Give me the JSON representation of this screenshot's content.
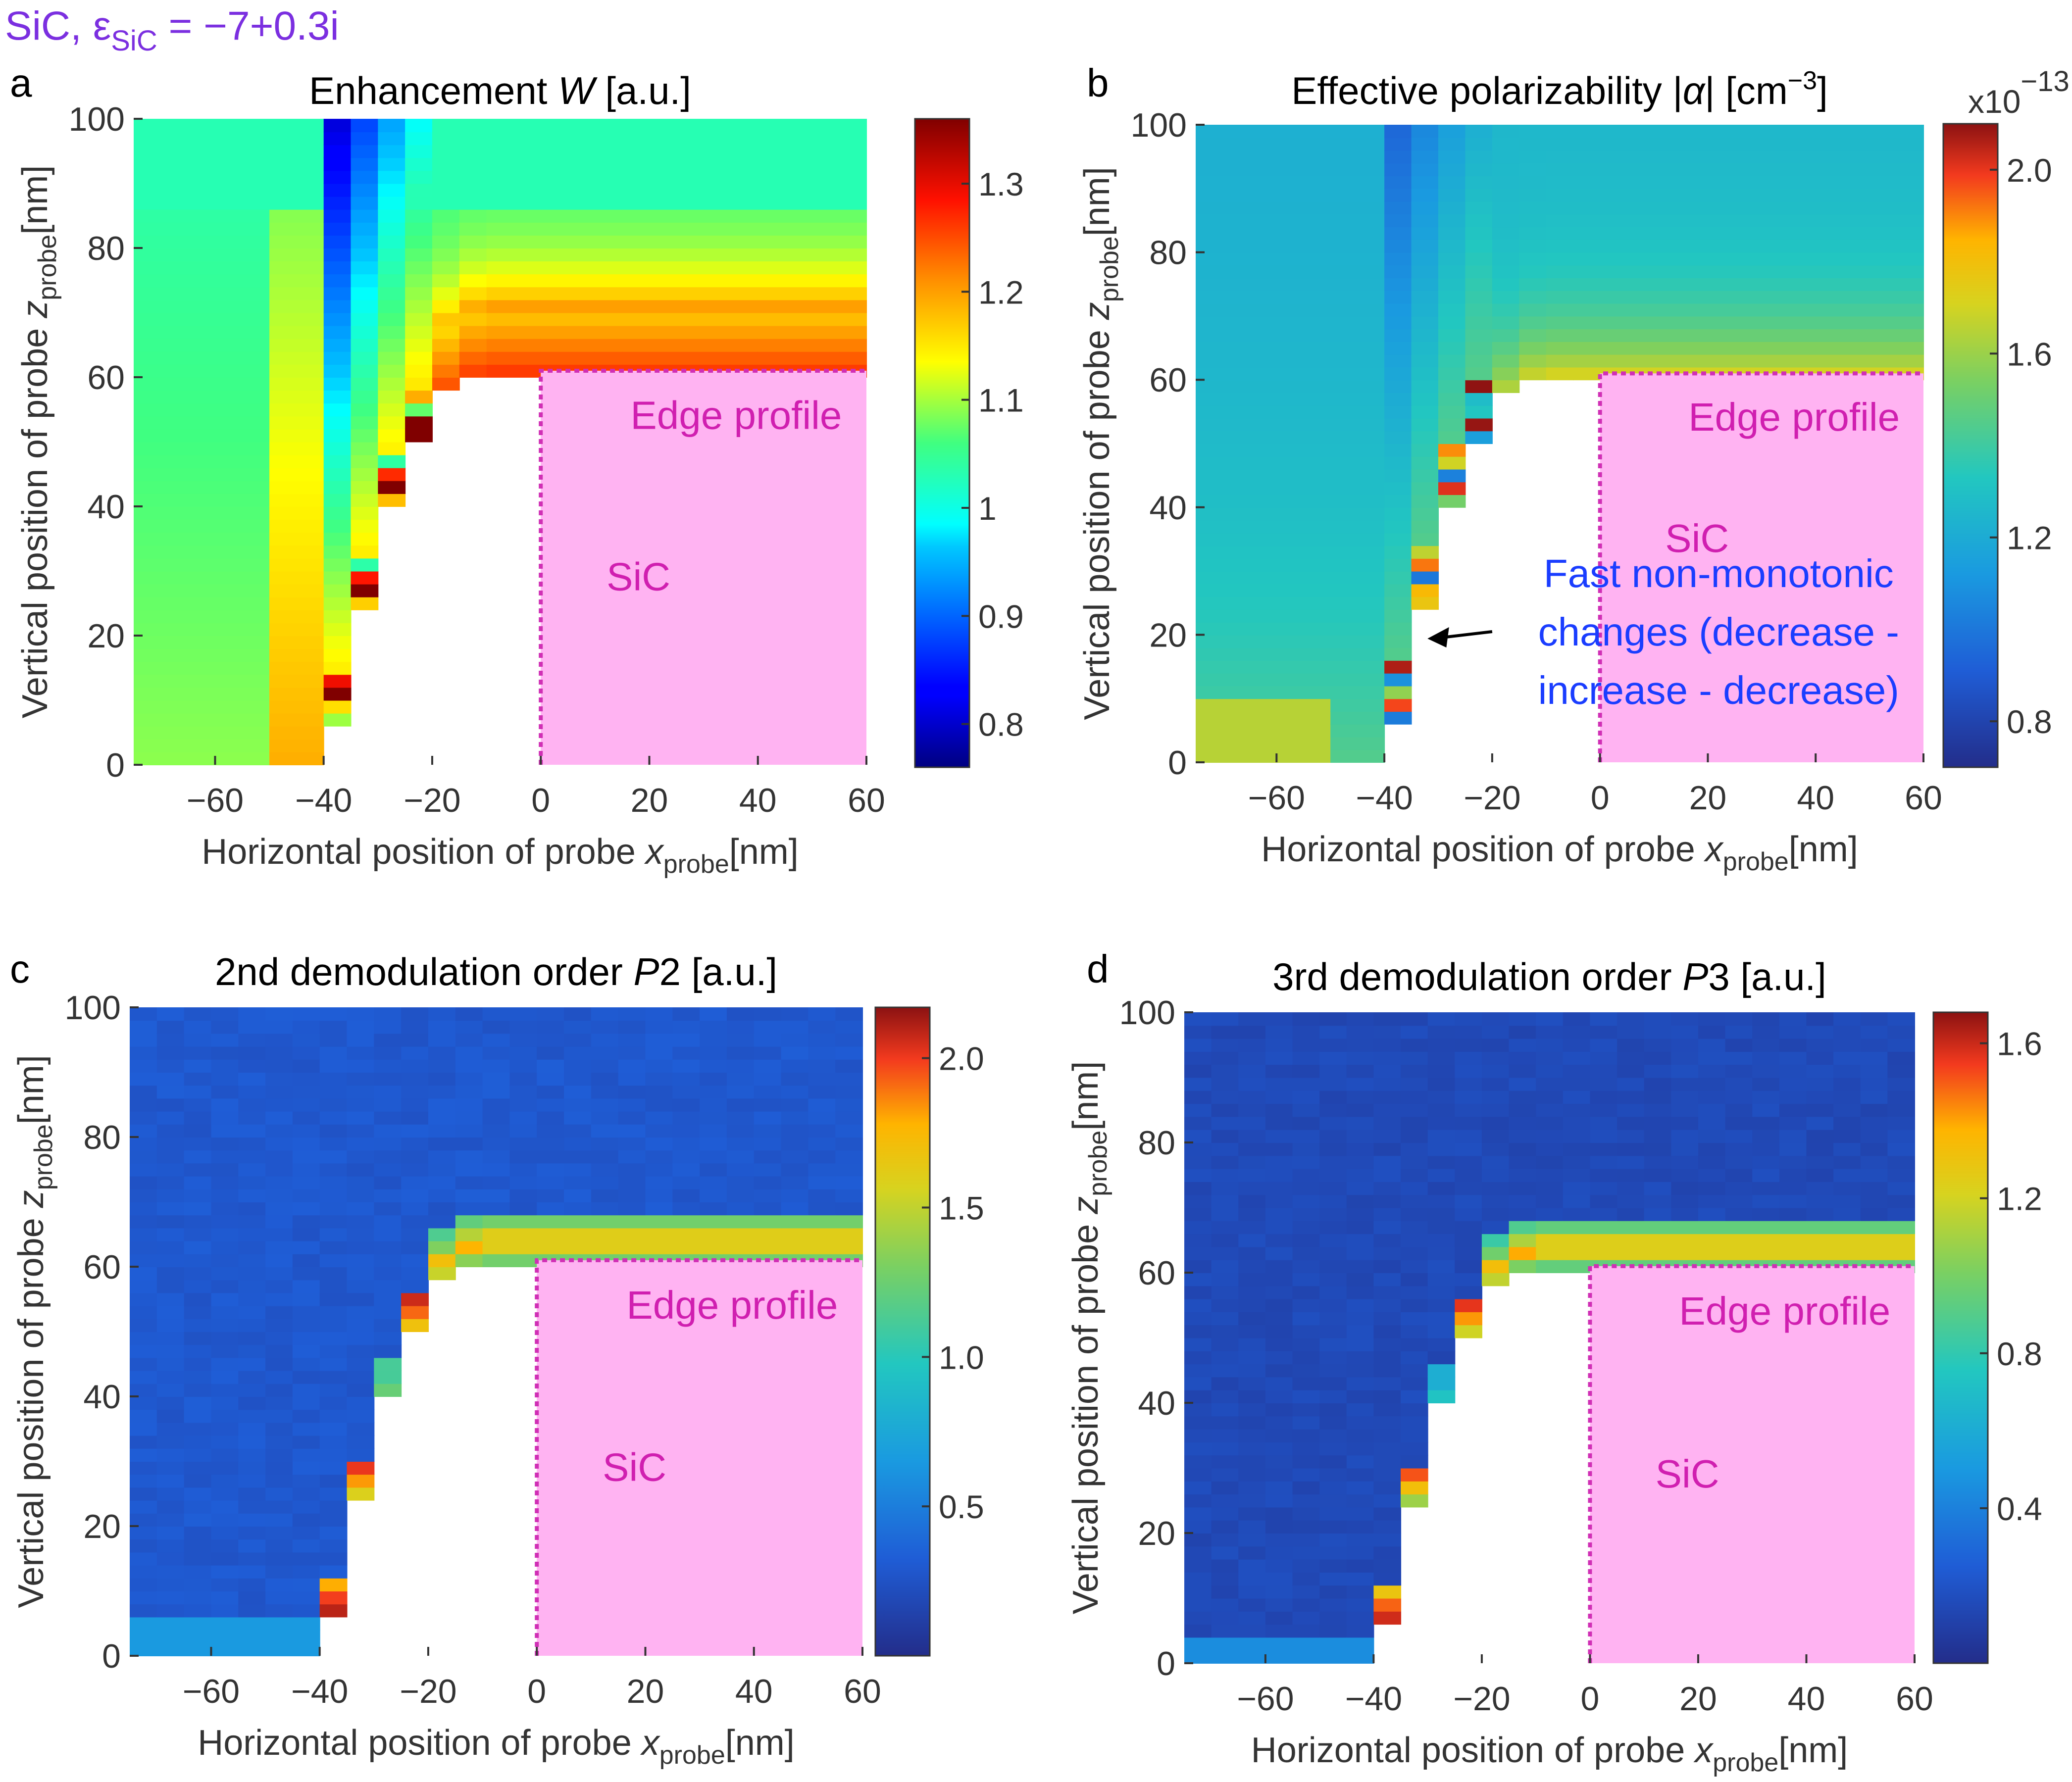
{
  "figure": {
    "material_label": "SiC, ε",
    "material_sub": "SiC",
    "material_value": " = −7+0.3i",
    "colors": {
      "material_label": "#7B2FE0",
      "region_fill": "#FFB3F2",
      "region_border": "#D02FB5",
      "region_text": "#D01FB0",
      "annotation_text": "#1A3DFF",
      "axis": "#333333",
      "text": "#111111"
    }
  },
  "chart_data": [
    {
      "panel": "a",
      "type": "heatmap",
      "title": "Enhancement W [a.u.]",
      "title_parts": [
        "Enhancement ",
        "W",
        " [a.u.]"
      ],
      "xlabel_parts": [
        "Horizontal position of probe ",
        "x",
        "probe",
        "[nm]"
      ],
      "ylabel_parts": [
        "Vertical position of probe ",
        "z",
        "probe",
        "[nm]"
      ],
      "xlim": [
        -75,
        60
      ],
      "ylim": [
        0,
        100
      ],
      "xticks": [
        "−60",
        "−40",
        "−20",
        "0",
        "20",
        "40",
        "60"
      ],
      "xtick_values": [
        -60,
        -40,
        -20,
        0,
        20,
        40,
        60
      ],
      "yticks": [
        "0",
        "20",
        "40",
        "60",
        "80",
        "100"
      ],
      "ytick_values": [
        0,
        20,
        40,
        60,
        80,
        100
      ],
      "colorbar": {
        "range": [
          0.76,
          1.36
        ],
        "ticks": [
          "0.8",
          "0.9",
          "1",
          "1.1",
          "1.2",
          "1.3"
        ],
        "tick_values": [
          0.8,
          0.9,
          1.0,
          1.1,
          1.2,
          1.3
        ],
        "exponent": ""
      },
      "background_value": 1.02,
      "region_label": "Edge profile",
      "material_text": "SiC",
      "annotation": "",
      "edge_profile": [
        [
          -40,
          0
        ],
        [
          -37,
          7
        ],
        [
          -35,
          14
        ],
        [
          -33,
          22
        ],
        [
          -31,
          30
        ],
        [
          -28,
          38
        ],
        [
          -25,
          45
        ],
        [
          -22,
          52
        ],
        [
          -18,
          57
        ],
        [
          -14,
          60
        ],
        [
          -10,
          61
        ],
        [
          0,
          61
        ],
        [
          60,
          61
        ]
      ]
    },
    {
      "panel": "b",
      "type": "heatmap",
      "title": "Effective polarizability |α| [cm⁻³]",
      "title_parts": [
        "Effective polarizability |",
        "α",
        "| [cm",
        "−3",
        "]"
      ],
      "xlabel_parts": [
        "Horizontal position of probe ",
        "x",
        "probe",
        "[nm]"
      ],
      "ylabel_parts": [
        "Vertical position of probe ",
        "z",
        "probe",
        "[nm]"
      ],
      "xlim": [
        -75,
        60
      ],
      "ylim": [
        0,
        100
      ],
      "xticks": [
        "−60",
        "−40",
        "−20",
        "0",
        "20",
        "40",
        "60"
      ],
      "xtick_values": [
        -60,
        -40,
        -20,
        0,
        20,
        40,
        60
      ],
      "yticks": [
        "0",
        "20",
        "40",
        "60",
        "80",
        "100"
      ],
      "ytick_values": [
        0,
        20,
        40,
        60,
        80,
        100
      ],
      "colorbar": {
        "range": [
          0.7,
          2.1
        ],
        "ticks": [
          "0.8",
          "1.2",
          "1.6",
          "2.0"
        ],
        "tick_values": [
          0.8,
          1.2,
          1.6,
          2.0
        ],
        "exponent_base": "x10",
        "exponent": "−13"
      },
      "background_value": 1.15,
      "region_label": "Edge profile",
      "material_text": "SiC",
      "annotation": [
        "Fast non-monotonic",
        "changes (decrease -",
        "increase - decrease)"
      ],
      "edge_profile": [
        [
          -40,
          0
        ],
        [
          -37,
          7
        ],
        [
          -35,
          14
        ],
        [
          -33,
          22
        ],
        [
          -31,
          30
        ],
        [
          -28,
          38
        ],
        [
          -25,
          45
        ],
        [
          -22,
          52
        ],
        [
          -18,
          57
        ],
        [
          -14,
          60
        ],
        [
          -10,
          61
        ],
        [
          0,
          61
        ],
        [
          60,
          61
        ]
      ]
    },
    {
      "panel": "c",
      "type": "heatmap",
      "title": "2nd demodulation order P2 [a.u.]",
      "title_parts": [
        "2nd demodulation order ",
        "P",
        "2 [a.u.]"
      ],
      "xlabel_parts": [
        "Horizontal position of probe ",
        "x",
        "probe",
        "[nm]"
      ],
      "ylabel_parts": [
        "Vertical position of probe ",
        "z",
        "probe",
        "[nm]"
      ],
      "xlim": [
        -75,
        60
      ],
      "ylim": [
        0,
        100
      ],
      "xticks": [
        "−60",
        "−40",
        "−20",
        "0",
        "20",
        "40",
        "60"
      ],
      "xtick_values": [
        -60,
        -40,
        -20,
        0,
        20,
        40,
        60
      ],
      "yticks": [
        "0",
        "20",
        "40",
        "60",
        "80",
        "100"
      ],
      "ytick_values": [
        0,
        20,
        40,
        60,
        80,
        100
      ],
      "colorbar": {
        "range": [
          0.0,
          2.17
        ],
        "ticks": [
          "0.5",
          "1.0",
          "1.5",
          "2.0"
        ],
        "tick_values": [
          0.5,
          1.0,
          1.5,
          2.0
        ],
        "exponent": ""
      },
      "background_value": 0.3,
      "region_label": "Edge profile",
      "material_text": "SiC",
      "annotation": "",
      "edge_profile": [
        [
          -40,
          0
        ],
        [
          -37,
          7
        ],
        [
          -35,
          14
        ],
        [
          -33,
          22
        ],
        [
          -31,
          30
        ],
        [
          -28,
          38
        ],
        [
          -25,
          45
        ],
        [
          -22,
          52
        ],
        [
          -18,
          57
        ],
        [
          -14,
          60
        ],
        [
          -10,
          61
        ],
        [
          0,
          61
        ],
        [
          60,
          61
        ]
      ]
    },
    {
      "panel": "d",
      "type": "heatmap",
      "title": "3rd demodulation order P3 [a.u.]",
      "title_parts": [
        "3rd demodulation order ",
        "P",
        "3 [a.u.]"
      ],
      "xlabel_parts": [
        "Horizontal position of probe ",
        "x",
        "probe",
        "[nm]"
      ],
      "ylabel_parts": [
        "Vertical position of probe ",
        "z",
        "probe",
        "[nm]"
      ],
      "xlim": [
        -75,
        60
      ],
      "ylim": [
        0,
        100
      ],
      "xticks": [
        "−60",
        "−40",
        "−20",
        "0",
        "20",
        "40",
        "60"
      ],
      "xtick_values": [
        -60,
        -40,
        -20,
        0,
        20,
        40,
        60
      ],
      "yticks": [
        "0",
        "20",
        "40",
        "60",
        "80",
        "100"
      ],
      "ytick_values": [
        0,
        20,
        40,
        60,
        80,
        100
      ],
      "colorbar": {
        "range": [
          0.0,
          1.68
        ],
        "ticks": [
          "0.4",
          "0.8",
          "1.2",
          "1.6"
        ],
        "tick_values": [
          0.4,
          0.8,
          1.2,
          1.6
        ],
        "exponent": ""
      },
      "background_value": 0.15,
      "region_label": "Edge profile",
      "material_text": "SiC",
      "annotation": "",
      "edge_profile": [
        [
          -40,
          0
        ],
        [
          -37,
          7
        ],
        [
          -35,
          14
        ],
        [
          -33,
          22
        ],
        [
          -31,
          30
        ],
        [
          -28,
          38
        ],
        [
          -25,
          45
        ],
        [
          -22,
          52
        ],
        [
          -18,
          57
        ],
        [
          -14,
          60
        ],
        [
          -10,
          61
        ],
        [
          0,
          61
        ],
        [
          60,
          61
        ]
      ]
    }
  ]
}
